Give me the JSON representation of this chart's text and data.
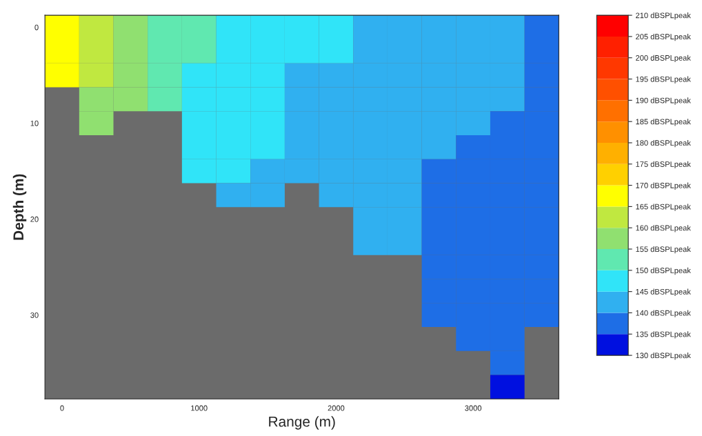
{
  "chart_data": {
    "type": "heatmap",
    "xlabel": "Range (m)",
    "ylabel": "Depth (m)",
    "categories": [
      "0",
      null,
      null,
      null,
      "1000",
      null,
      null,
      null,
      "2000",
      null,
      null,
      null,
      "3000",
      null,
      null
    ],
    "y_categories": [
      "0",
      null,
      null,
      null,
      "10",
      null,
      null,
      null,
      "20",
      null,
      null,
      null,
      "30",
      null,
      null,
      null
    ],
    "cells": [
      [
        167.5,
        162.5,
        157.5,
        152.5,
        152.5,
        147.5,
        147.5,
        147.5,
        147.5,
        142.5,
        142.5,
        142.5,
        142.5,
        142.5,
        137.5
      ],
      [
        167.5,
        162.5,
        157.5,
        152.5,
        152.5,
        147.5,
        147.5,
        147.5,
        147.5,
        142.5,
        142.5,
        142.5,
        142.5,
        142.5,
        137.5
      ],
      [
        167.5,
        162.5,
        157.5,
        152.5,
        147.5,
        147.5,
        147.5,
        142.5,
        142.5,
        142.5,
        142.5,
        142.5,
        142.5,
        142.5,
        137.5
      ],
      [
        null,
        157.5,
        157.5,
        152.5,
        147.5,
        147.5,
        147.5,
        142.5,
        142.5,
        142.5,
        142.5,
        142.5,
        142.5,
        142.5,
        137.5
      ],
      [
        null,
        157.5,
        null,
        null,
        147.5,
        147.5,
        147.5,
        142.5,
        142.5,
        142.5,
        142.5,
        142.5,
        142.5,
        137.5,
        137.5
      ],
      [
        null,
        null,
        null,
        null,
        147.5,
        147.5,
        147.5,
        142.5,
        142.5,
        142.5,
        142.5,
        142.5,
        137.5,
        137.5,
        137.5
      ],
      [
        null,
        null,
        null,
        null,
        147.5,
        147.5,
        142.5,
        142.5,
        142.5,
        142.5,
        142.5,
        137.5,
        137.5,
        137.5,
        137.5
      ],
      [
        null,
        null,
        null,
        null,
        null,
        142.5,
        142.5,
        null,
        142.5,
        142.5,
        142.5,
        137.5,
        137.5,
        137.5,
        137.5
      ],
      [
        null,
        null,
        null,
        null,
        null,
        null,
        null,
        null,
        null,
        142.5,
        142.5,
        137.5,
        137.5,
        137.5,
        137.5
      ],
      [
        null,
        null,
        null,
        null,
        null,
        null,
        null,
        null,
        null,
        142.5,
        142.5,
        137.5,
        137.5,
        137.5,
        137.5
      ],
      [
        null,
        null,
        null,
        null,
        null,
        null,
        null,
        null,
        null,
        null,
        null,
        137.5,
        137.5,
        137.5,
        137.5
      ],
      [
        null,
        null,
        null,
        null,
        null,
        null,
        null,
        null,
        null,
        null,
        null,
        137.5,
        137.5,
        137.5,
        137.5
      ],
      [
        null,
        null,
        null,
        null,
        null,
        null,
        null,
        null,
        null,
        null,
        null,
        137.5,
        137.5,
        137.5,
        137.5
      ],
      [
        null,
        null,
        null,
        null,
        null,
        null,
        null,
        null,
        null,
        null,
        null,
        null,
        137.5,
        137.5,
        null
      ],
      [
        null,
        null,
        null,
        null,
        null,
        null,
        null,
        null,
        null,
        null,
        null,
        null,
        null,
        137.5,
        null
      ],
      [
        null,
        null,
        null,
        null,
        null,
        null,
        null,
        null,
        null,
        null,
        null,
        null,
        null,
        132.5,
        null
      ]
    ],
    "clim": [
      130,
      210
    ],
    "cticks": [
      {
        "value": 130,
        "label": "130 dBSPLpeak"
      },
      {
        "value": 135,
        "label": "135 dBSPLpeak"
      },
      {
        "value": 140,
        "label": "140 dBSPLpeak"
      },
      {
        "value": 145,
        "label": "145 dBSPLpeak"
      },
      {
        "value": 150,
        "label": "150 dBSPLpeak"
      },
      {
        "value": 155,
        "label": "155 dBSPLpeak"
      },
      {
        "value": 160,
        "label": "160 dBSPLpeak"
      },
      {
        "value": 165,
        "label": "165 dBSPLpeak"
      },
      {
        "value": 170,
        "label": "170 dBSPLpeak"
      },
      {
        "value": 175,
        "label": "175 dBSPLpeak"
      },
      {
        "value": 180,
        "label": "180 dBSPLpeak"
      },
      {
        "value": 185,
        "label": "185 dBSPLpeak"
      },
      {
        "value": 190,
        "label": "190 dBSPLpeak"
      },
      {
        "value": 195,
        "label": "195 dBSPLpeak"
      },
      {
        "value": 200,
        "label": "200 dBSPLpeak"
      },
      {
        "value": 205,
        "label": "205 dBSPLpeak"
      },
      {
        "value": 210,
        "label": "210 dBSPLpeak"
      }
    ],
    "colors": [
      "#0010e0",
      "#1e6ee6",
      "#30b0f0",
      "#30e4f8",
      "#60e8b0",
      "#90e070",
      "#c0e840",
      "#ffff00",
      "#ffd000",
      "#ffb000",
      "#ff9000",
      "#ff7000",
      "#ff5000",
      "#ff3800",
      "#ff2000",
      "#ff0000"
    ]
  }
}
